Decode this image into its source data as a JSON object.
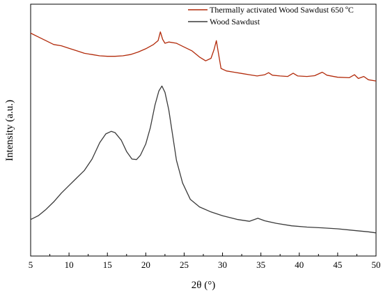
{
  "chart_data": {
    "type": "line",
    "xlabel": "2θ (°)",
    "ylabel": "Intensity (a.u.)",
    "xlim": [
      5,
      50
    ],
    "ylim": [
      0,
      100
    ],
    "x_ticks": [
      5,
      10,
      15,
      20,
      25,
      30,
      35,
      40,
      45,
      50
    ],
    "y_ticks_shown": false,
    "grid": false,
    "legend_position": "top-right",
    "series": [
      {
        "name": "Thermally activated Wood Sawdust 650 ºC",
        "color": "#b22a0a",
        "points": [
          [
            5,
            88.5
          ],
          [
            6,
            87.0
          ],
          [
            7,
            85.5
          ],
          [
            8,
            84.0
          ],
          [
            9,
            83.5
          ],
          [
            10,
            82.5
          ],
          [
            11,
            81.5
          ],
          [
            12,
            80.5
          ],
          [
            13,
            80.0
          ],
          [
            14,
            79.5
          ],
          [
            15,
            79.3
          ],
          [
            16,
            79.3
          ],
          [
            17,
            79.5
          ],
          [
            18,
            80.0
          ],
          [
            19,
            81.0
          ],
          [
            20,
            82.3
          ],
          [
            21,
            84.0
          ],
          [
            21.6,
            85.5
          ],
          [
            21.9,
            89.0
          ],
          [
            22.2,
            86.0
          ],
          [
            22.5,
            84.5
          ],
          [
            23,
            85.0
          ],
          [
            24,
            84.5
          ],
          [
            25,
            83.0
          ],
          [
            26,
            81.5
          ],
          [
            27,
            79.0
          ],
          [
            27.8,
            77.5
          ],
          [
            28.5,
            78.5
          ],
          [
            28.9,
            82.0
          ],
          [
            29.2,
            85.5
          ],
          [
            29.5,
            80.0
          ],
          [
            29.8,
            74.5
          ],
          [
            30.5,
            73.5
          ],
          [
            31.5,
            73.0
          ],
          [
            32.5,
            72.5
          ],
          [
            33.5,
            72.0
          ],
          [
            34.5,
            71.5
          ],
          [
            35.5,
            72.0
          ],
          [
            36,
            72.8
          ],
          [
            36.5,
            71.8
          ],
          [
            37.5,
            71.5
          ],
          [
            38.5,
            71.3
          ],
          [
            39.2,
            72.6
          ],
          [
            39.8,
            71.5
          ],
          [
            41,
            71.3
          ],
          [
            42,
            71.6
          ],
          [
            43,
            73.0
          ],
          [
            43.6,
            71.8
          ],
          [
            45,
            71.0
          ],
          [
            46.5,
            70.8
          ],
          [
            47.2,
            72.0
          ],
          [
            47.7,
            70.5
          ],
          [
            48.4,
            71.3
          ],
          [
            49,
            70.0
          ],
          [
            50,
            69.5
          ]
        ]
      },
      {
        "name": "Wood Sawdust",
        "color": "#3a3a3a",
        "points": [
          [
            5,
            14.5
          ],
          [
            6,
            16.0
          ],
          [
            7,
            18.5
          ],
          [
            8,
            21.5
          ],
          [
            9,
            25.0
          ],
          [
            10,
            28.0
          ],
          [
            11,
            31.0
          ],
          [
            12,
            34.0
          ],
          [
            13,
            38.5
          ],
          [
            14,
            45.0
          ],
          [
            14.8,
            48.5
          ],
          [
            15.5,
            49.5
          ],
          [
            16,
            49.0
          ],
          [
            16.8,
            46.0
          ],
          [
            17.5,
            41.5
          ],
          [
            18.2,
            38.5
          ],
          [
            18.8,
            38.3
          ],
          [
            19.3,
            40.0
          ],
          [
            20,
            44.5
          ],
          [
            20.6,
            51.0
          ],
          [
            21.2,
            60.0
          ],
          [
            21.7,
            65.5
          ],
          [
            22.1,
            67.5
          ],
          [
            22.5,
            65.0
          ],
          [
            23,
            58.0
          ],
          [
            23.5,
            48.0
          ],
          [
            24,
            38.0
          ],
          [
            24.8,
            29.0
          ],
          [
            25.8,
            22.5
          ],
          [
            27,
            19.5
          ],
          [
            28.5,
            17.5
          ],
          [
            30,
            16.0
          ],
          [
            32,
            14.5
          ],
          [
            33.5,
            13.8
          ],
          [
            34.6,
            15.0
          ],
          [
            35.5,
            14.0
          ],
          [
            37,
            13.0
          ],
          [
            39,
            12.0
          ],
          [
            41,
            11.5
          ],
          [
            43,
            11.2
          ],
          [
            45,
            10.8
          ],
          [
            47,
            10.2
          ],
          [
            49,
            9.6
          ],
          [
            50,
            9.2
          ]
        ]
      }
    ]
  }
}
